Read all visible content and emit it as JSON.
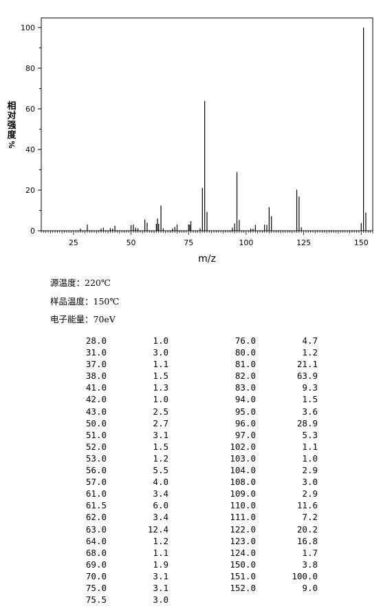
{
  "chart_data": {
    "type": "bar",
    "xlabel": "m/z",
    "ylabel": "相对强度 %",
    "xlim": [
      11,
      155
    ],
    "ylim": [
      0,
      100
    ],
    "x_ticks": [
      "25",
      "50",
      "75",
      "100",
      "125",
      "150"
    ],
    "y_ticks": [
      "0",
      "20",
      "40",
      "60",
      "80",
      "100"
    ],
    "peaks": [
      {
        "mz": 28.0,
        "intensity": 1.0
      },
      {
        "mz": 31.0,
        "intensity": 3.0
      },
      {
        "mz": 37.0,
        "intensity": 1.1
      },
      {
        "mz": 38.0,
        "intensity": 1.5
      },
      {
        "mz": 41.0,
        "intensity": 1.3
      },
      {
        "mz": 42.0,
        "intensity": 1.0
      },
      {
        "mz": 43.0,
        "intensity": 2.5
      },
      {
        "mz": 50.0,
        "intensity": 2.7
      },
      {
        "mz": 51.0,
        "intensity": 3.1
      },
      {
        "mz": 52.0,
        "intensity": 1.5
      },
      {
        "mz": 53.0,
        "intensity": 1.2
      },
      {
        "mz": 56.0,
        "intensity": 5.5
      },
      {
        "mz": 57.0,
        "intensity": 4.0
      },
      {
        "mz": 61.0,
        "intensity": 3.4
      },
      {
        "mz": 61.5,
        "intensity": 6.0
      },
      {
        "mz": 62.0,
        "intensity": 3.4
      },
      {
        "mz": 63.0,
        "intensity": 12.4
      },
      {
        "mz": 64.0,
        "intensity": 1.2
      },
      {
        "mz": 68.0,
        "intensity": 1.1
      },
      {
        "mz": 69.0,
        "intensity": 1.9
      },
      {
        "mz": 70.0,
        "intensity": 3.1
      },
      {
        "mz": 75.0,
        "intensity": 3.1
      },
      {
        "mz": 75.5,
        "intensity": 3.0
      },
      {
        "mz": 76.0,
        "intensity": 4.7
      },
      {
        "mz": 80.0,
        "intensity": 1.2
      },
      {
        "mz": 81.0,
        "intensity": 21.1
      },
      {
        "mz": 82.0,
        "intensity": 63.9
      },
      {
        "mz": 83.0,
        "intensity": 9.3
      },
      {
        "mz": 94.0,
        "intensity": 1.5
      },
      {
        "mz": 95.0,
        "intensity": 3.6
      },
      {
        "mz": 96.0,
        "intensity": 28.9
      },
      {
        "mz": 97.0,
        "intensity": 5.3
      },
      {
        "mz": 102.0,
        "intensity": 1.1
      },
      {
        "mz": 103.0,
        "intensity": 1.0
      },
      {
        "mz": 104.0,
        "intensity": 2.9
      },
      {
        "mz": 108.0,
        "intensity": 3.0
      },
      {
        "mz": 109.0,
        "intensity": 2.9
      },
      {
        "mz": 110.0,
        "intensity": 11.6
      },
      {
        "mz": 111.0,
        "intensity": 7.2
      },
      {
        "mz": 122.0,
        "intensity": 20.2
      },
      {
        "mz": 123.0,
        "intensity": 16.8
      },
      {
        "mz": 124.0,
        "intensity": 1.7
      },
      {
        "mz": 150.0,
        "intensity": 3.8
      },
      {
        "mz": 151.0,
        "intensity": 100.0
      },
      {
        "mz": 152.0,
        "intensity": 9.0
      }
    ]
  },
  "conditions": {
    "source_temp": "源温度：220℃",
    "sample_temp": "样品温度：150℃",
    "electron_energy": "电子能量：70eV"
  },
  "table": {
    "left": {
      "mz": [
        "28.0",
        "31.0",
        "37.0",
        "38.0",
        "41.0",
        "42.0",
        "43.0",
        "50.0",
        "51.0",
        "52.0",
        "53.0",
        "56.0",
        "57.0",
        "61.0",
        "61.5",
        "62.0",
        "63.0",
        "64.0",
        "68.0",
        "69.0",
        "70.0",
        "75.0",
        "75.5"
      ],
      "intensity": [
        "1.0",
        "3.0",
        "1.1",
        "1.5",
        "1.3",
        "1.0",
        "2.5",
        "2.7",
        "3.1",
        "1.5",
        "1.2",
        "5.5",
        "4.0",
        "3.4",
        "6.0",
        "3.4",
        "12.4",
        "1.2",
        "1.1",
        "1.9",
        "3.1",
        "3.1",
        "3.0"
      ]
    },
    "right": {
      "mz": [
        "76.0",
        "80.0",
        "81.0",
        "82.0",
        "83.0",
        "94.0",
        "95.0",
        "96.0",
        "97.0",
        "102.0",
        "103.0",
        "104.0",
        "108.0",
        "109.0",
        "110.0",
        "111.0",
        "122.0",
        "123.0",
        "124.0",
        "150.0",
        "151.0",
        "152.0"
      ],
      "intensity": [
        "4.7",
        "1.2",
        "21.1",
        "63.9",
        "9.3",
        "1.5",
        "3.6",
        "28.9",
        "5.3",
        "1.1",
        "1.0",
        "2.9",
        "3.0",
        "2.9",
        "11.6",
        "7.2",
        "20.2",
        "16.8",
        "1.7",
        "3.8",
        "100.0",
        "9.0"
      ]
    }
  }
}
